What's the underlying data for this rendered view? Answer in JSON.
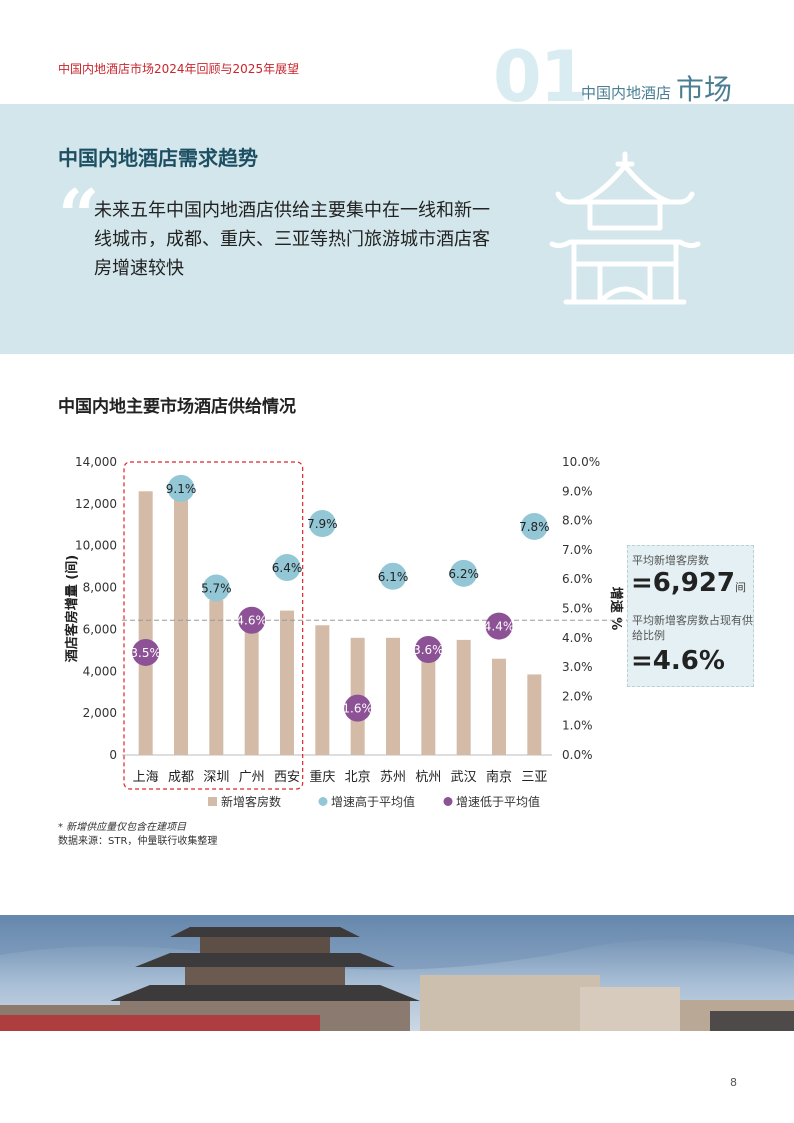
{
  "header": {
    "report_title": "中国内地酒店市场2024年回顾与2025年展望",
    "section_number": "01",
    "section_label_small": "中国内地酒店",
    "section_label_big": "市场"
  },
  "banner": {
    "title": "中国内地酒店需求趋势",
    "quote_mark": "“",
    "quote_text": "未来五年中国内地酒店供给主要集中在一线和新一线城市，成都、重庆、三亚等热门旅游城市酒店客房增速较快"
  },
  "chart_title": "中国内地主要市场酒店供给情况",
  "callout": {
    "label1": "平均新增客房数",
    "value1": "=6,927",
    "unit1": "间",
    "label2": "平均新增客房数占现有供给比例",
    "value2": "=4.6%"
  },
  "notes": {
    "note1": "* 新增供应量仅包含在建项目",
    "source": "数据来源：STR，仲量联行收集整理"
  },
  "page_number": "8",
  "colors": {
    "bar": "#d4bba7",
    "above_avg": "#94c7d6",
    "below_avg": "#8d5196",
    "banner_bg": "#d2e6eb",
    "accent_red": "#c8262d",
    "highlight_box": "#d9262d"
  },
  "chart_data": {
    "type": "bar",
    "categories": [
      "上海",
      "成都",
      "深圳",
      "广州",
      "西安",
      "重庆",
      "北京",
      "苏州",
      "杭州",
      "武汉",
      "南京",
      "三亚"
    ],
    "series": [
      {
        "name": "新增客房数",
        "type": "bar",
        "axis": "left",
        "values": [
          12600,
          12600,
          7400,
          6500,
          6900,
          6200,
          5600,
          5600,
          5100,
          5500,
          4600,
          3850
        ]
      },
      {
        "name": "增速",
        "type": "scatter",
        "axis": "right",
        "values": [
          3.5,
          9.1,
          5.7,
          4.6,
          6.4,
          7.9,
          1.6,
          6.1,
          3.6,
          6.2,
          4.4,
          7.8
        ],
        "labels": [
          "3.5%",
          "9.1%",
          "5.7%",
          "4.6%",
          "6.4%",
          "7.9%",
          "1.6%",
          "6.1%",
          "3.6%",
          "6.2%",
          "4.4%",
          "7.8%"
        ],
        "above_average": [
          false,
          true,
          true,
          false,
          true,
          true,
          false,
          true,
          false,
          true,
          false,
          true
        ]
      }
    ],
    "legend": [
      "新增客房数",
      "增速高于平均值",
      "增速低于平均值"
    ],
    "legend_position": "bottom",
    "ylabel": "酒店客房增量 (间)",
    "y2label": "增速 %",
    "ylim": [
      0,
      14000
    ],
    "y2lim": [
      0,
      10
    ],
    "yticks": [
      "0",
      "2,000",
      "4,000",
      "6,000",
      "8,000",
      "10,000",
      "12,000",
      "14,000"
    ],
    "y2ticks": [
      "0.0%",
      "1.0%",
      "2.0%",
      "3.0%",
      "4.0%",
      "5.0%",
      "6.0%",
      "7.0%",
      "8.0%",
      "9.0%",
      "10.0%"
    ],
    "average_line": 4.6,
    "highlight_group": [
      "上海",
      "成都",
      "深圳",
      "广州",
      "西安"
    ],
    "grid": false
  }
}
